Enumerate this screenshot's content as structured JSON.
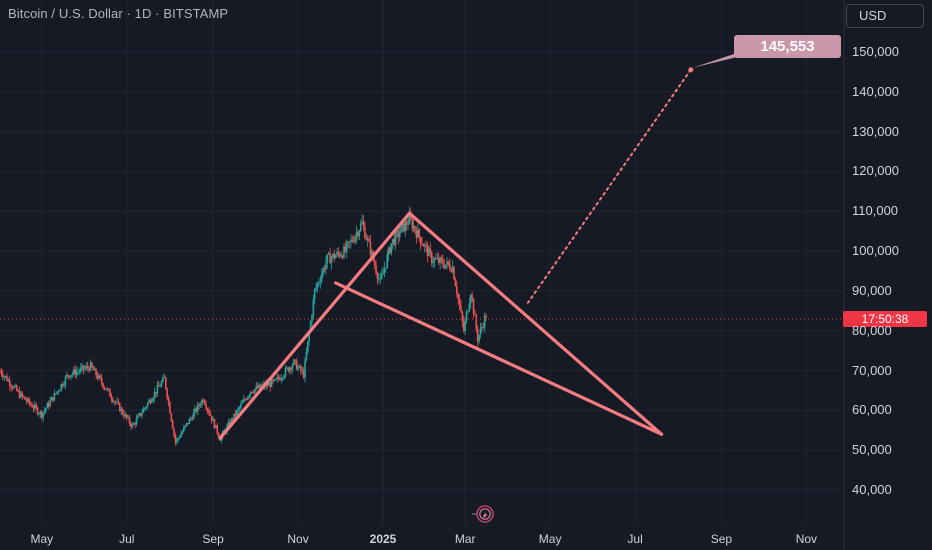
{
  "header": {
    "title": "Bitcoin / U.S. Dollar · 1D · BITSTAMP"
  },
  "currency_button": {
    "label": "USD"
  },
  "chart_data": {
    "type": "candlestick",
    "title": "Bitcoin / U.S. Dollar · 1D · BITSTAMP",
    "y_ticks": [
      "150,000",
      "140,000",
      "130,000",
      "120,000",
      "110,000",
      "100,000",
      "90,000",
      "80,000",
      "70,000",
      "60,000",
      "50,000",
      "40,000"
    ],
    "x_ticks": [
      "May",
      "Jul",
      "Sep",
      "Nov",
      "2025",
      "Mar",
      "May",
      "Jul",
      "Sep",
      "Nov"
    ],
    "x_ticks_bold": [
      "2025"
    ],
    "ylim": [
      35000,
      160000
    ],
    "price_path": [
      {
        "x": "2024-04-01",
        "y": 70000
      },
      {
        "x": "2024-04-15",
        "y": 64000
      },
      {
        "x": "2024-05-01",
        "y": 59000
      },
      {
        "x": "2024-05-20",
        "y": 69000
      },
      {
        "x": "2024-06-05",
        "y": 71000
      },
      {
        "x": "2024-06-25",
        "y": 61000
      },
      {
        "x": "2024-07-05",
        "y": 56000
      },
      {
        "x": "2024-07-28",
        "y": 68000
      },
      {
        "x": "2024-08-05",
        "y": 52000
      },
      {
        "x": "2024-08-25",
        "y": 63000
      },
      {
        "x": "2024-09-06",
        "y": 53000
      },
      {
        "x": "2024-09-28",
        "y": 65000
      },
      {
        "x": "2024-10-15",
        "y": 67000
      },
      {
        "x": "2024-10-29",
        "y": 72000
      },
      {
        "x": "2024-11-05",
        "y": 69000
      },
      {
        "x": "2024-11-13",
        "y": 90000
      },
      {
        "x": "2024-11-22",
        "y": 98000
      },
      {
        "x": "2024-12-05",
        "y": 100000
      },
      {
        "x": "2024-12-17",
        "y": 107000
      },
      {
        "x": "2024-12-30",
        "y": 92000
      },
      {
        "x": "2025-01-07",
        "y": 102000
      },
      {
        "x": "2025-01-20",
        "y": 108000
      },
      {
        "x": "2025-02-05",
        "y": 98000
      },
      {
        "x": "2025-02-20",
        "y": 96000
      },
      {
        "x": "2025-02-28",
        "y": 80000
      },
      {
        "x": "2025-03-05",
        "y": 90000
      },
      {
        "x": "2025-03-10",
        "y": 78000
      },
      {
        "x": "2025-03-16",
        "y": 84000
      }
    ],
    "last_price": 82900,
    "countdown": "17:50:38",
    "drawings": {
      "triangle_lines": [
        [
          {
            "x": "2024-09-06",
            "y": 53000
          },
          {
            "x": "2025-01-20",
            "y": 109500
          }
        ],
        [
          {
            "x": "2025-01-20",
            "y": 109500
          },
          {
            "x": "2025-07-20",
            "y": 54000
          }
        ],
        [
          {
            "x": "2024-11-28",
            "y": 92000
          },
          {
            "x": "2025-07-20",
            "y": 54000
          }
        ]
      ],
      "projection": [
        {
          "x": "2025-04-15",
          "y": 87000
        },
        {
          "x": "2025-08-10",
          "y": 145553
        }
      ],
      "target_label": "145,553"
    },
    "colors": {
      "up": "#26a69a",
      "down": "#ef5350",
      "drawing": "#f77c80",
      "target_badge": "#c996aa",
      "price_tag": "#f23645"
    }
  }
}
